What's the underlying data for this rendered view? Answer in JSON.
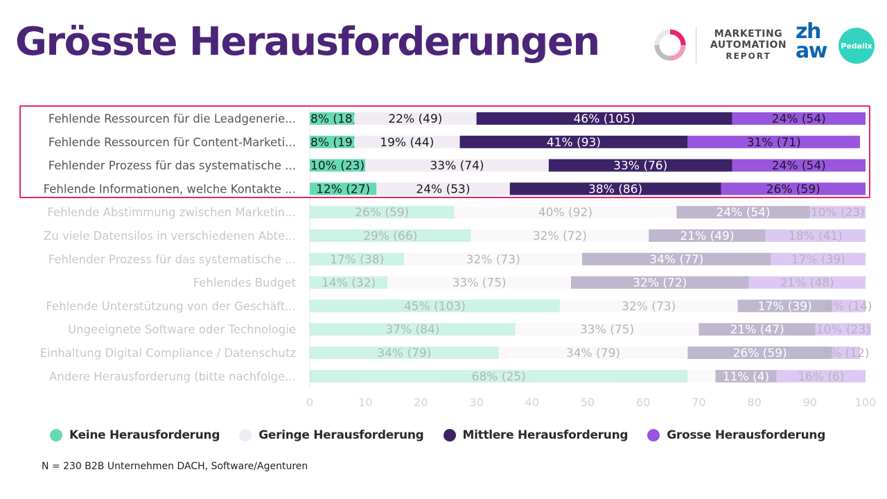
{
  "header": {
    "title": "Grösste Herausforderungen",
    "report_logo": {
      "line1": "MARKETING",
      "line2": "AUTOMATION",
      "line3": "REPORT"
    },
    "zhaw_logo": {
      "line1": "zh",
      "line2": "aw"
    },
    "pedalix_logo": "Pedalix"
  },
  "colors": {
    "title": "#4b2577",
    "keine": "#66d9b5",
    "geringe": "#f1ecf3",
    "mittlere": "#3c2266",
    "grosse": "#9856de",
    "highlight_border": "#e6256d"
  },
  "chart_data": {
    "type": "bar",
    "orientation": "horizontal",
    "stacked": true,
    "title": "",
    "xlabel": "",
    "ylabel": "",
    "xlim": [
      0,
      100
    ],
    "xticks": [
      0,
      10,
      20,
      30,
      40,
      50,
      60,
      70,
      80,
      90,
      100
    ],
    "categories": [
      "Fehlende Ressourcen für die Leadgenerie...",
      "Fehlende Ressourcen für Content-Marketi...",
      "Fehlender Prozess für das systematische ...",
      "Fehlende Informationen, welche Kontakte ...",
      "Fehlende Abstimmung zwischen Marketin...",
      "Zu viele Datensilos in verschiedenen Abte...",
      "Fehlender Prozess für das systematische ...",
      "Fehlendes Budget",
      "Fehlende Unterstützung von der Geschäft...",
      "Ungeeignete Software oder Technologie",
      "Einhaltung Digital Compliance / Datenschutz",
      "Andere Herausforderung (bitte nachfolge..."
    ],
    "highlighted_rows": [
      0,
      1,
      2,
      3
    ],
    "series": [
      {
        "name": "Keine Herausforderung",
        "values": [
          8,
          8,
          10,
          12,
          26,
          29,
          17,
          14,
          45,
          37,
          34,
          68
        ],
        "labels": [
          "8% (18)",
          "8% (19)",
          "10% (23)",
          "12% (27)",
          "26% (59)",
          "29% (66)",
          "17% (38)",
          "14% (32)",
          "45% (103)",
          "37% (84)",
          "34% (79)",
          "68% (25)"
        ]
      },
      {
        "name": "Geringe Herausforderung",
        "values": [
          22,
          19,
          33,
          24,
          40,
          32,
          32,
          33,
          32,
          33,
          34,
          5
        ],
        "labels": [
          "22% (49)",
          "19% (44)",
          "33% (74)",
          "24% (53)",
          "40% (92)",
          "32% (72)",
          "32% (73)",
          "33% (75)",
          "32% (73)",
          "33% (75)",
          "34% (79)",
          ""
        ]
      },
      {
        "name": "Mittlere Herausforderung",
        "values": [
          46,
          41,
          33,
          38,
          24,
          21,
          34,
          32,
          17,
          21,
          26,
          11
        ],
        "labels": [
          "46% (105)",
          "41% (93)",
          "33% (76)",
          "38% (86)",
          "24% (54)",
          "21% (49)",
          "34% (77)",
          "32% (72)",
          "17% (39)",
          "21% (47)",
          "26% (59)",
          "11% (4)"
        ]
      },
      {
        "name": "Grosse Herausforderung",
        "values": [
          24,
          31,
          24,
          26,
          10,
          18,
          17,
          21,
          6,
          10,
          5,
          16
        ],
        "labels": [
          "24% (54)",
          "31% (71)",
          "24% (54)",
          "26% (59)",
          "10% (23)",
          "18% (41)",
          "17% (39)",
          "21% (48)",
          "6% (14)",
          "10% (23)",
          "5% (12)",
          "16% (6)"
        ]
      }
    ]
  },
  "legend": [
    {
      "label": "Keine Herausforderung"
    },
    {
      "label": "Geringe Herausforderung"
    },
    {
      "label": "Mittlere Herausforderung"
    },
    {
      "label": "Grosse Herausforderung"
    }
  ],
  "footnote": "N = 230 B2B Unternehmen DACH, Software/Agenturen"
}
